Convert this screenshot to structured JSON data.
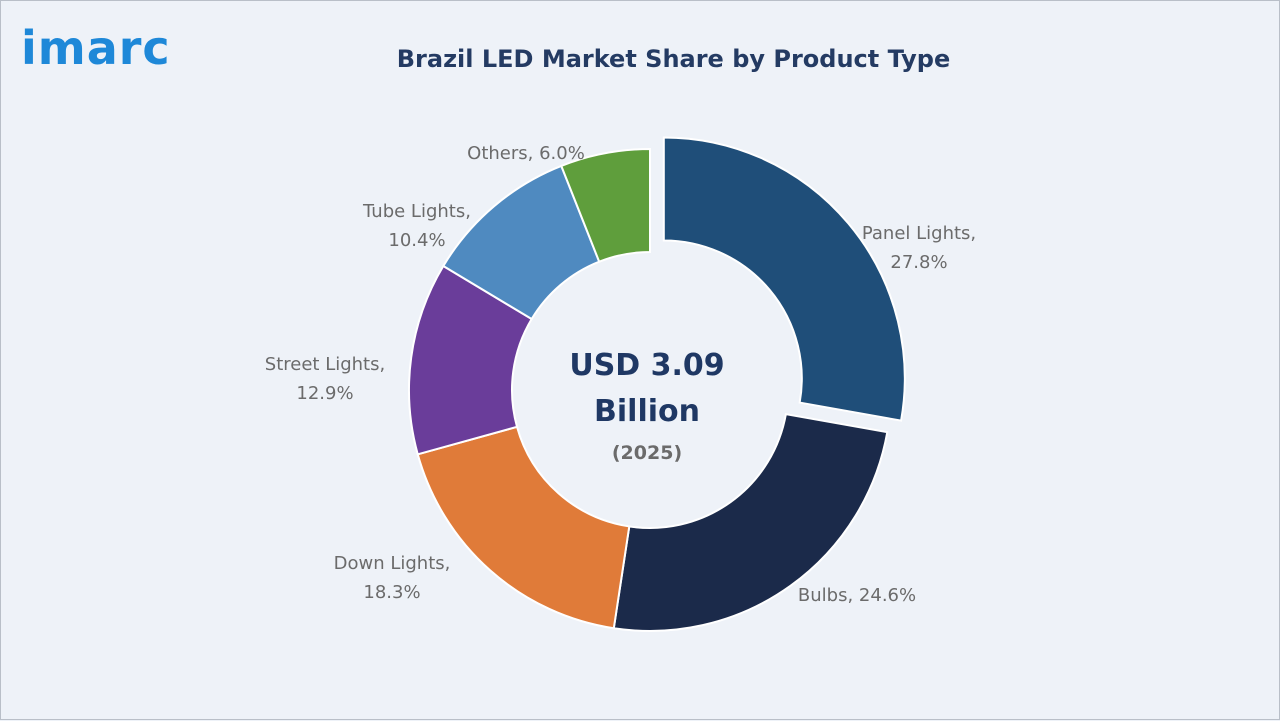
{
  "brand": {
    "logo_text": "imarc",
    "logo_color": "#1e88d8"
  },
  "chart_data": {
    "type": "pie",
    "variant": "donut",
    "title": "Brazil LED Market Share by Product Type",
    "center_text": {
      "line1": "USD 3.09",
      "line2": "Billion",
      "line3": "(2025)"
    },
    "unit": "%",
    "slices": [
      {
        "label": "Panel Lights",
        "value": 27.8,
        "color": "#1f4e79",
        "exploded": true,
        "label_line1": "Panel Lights,",
        "label_line2": "27.8%"
      },
      {
        "label": "Bulbs",
        "value": 24.6,
        "color": "#1b2a4a",
        "exploded": false,
        "label_line1": "Bulbs, 24.6%",
        "label_line2": ""
      },
      {
        "label": "Down Lights",
        "value": 18.3,
        "color": "#e07b39",
        "exploded": false,
        "label_line1": "Down Lights,",
        "label_line2": "18.3%"
      },
      {
        "label": "Street Lights",
        "value": 12.9,
        "color": "#6a3d9a",
        "exploded": false,
        "label_line1": "Street Lights,",
        "label_line2": "12.9%"
      },
      {
        "label": "Tube Lights",
        "value": 10.4,
        "color": "#4f8ac0",
        "exploded": false,
        "label_line1": "Tube Lights,",
        "label_line2": "10.4%"
      },
      {
        "label": "Others",
        "value": 6.0,
        "color": "#5f9e3c",
        "exploded": false,
        "label_line1": "Others, 6.0%",
        "label_line2": ""
      }
    ],
    "legend": "none"
  }
}
